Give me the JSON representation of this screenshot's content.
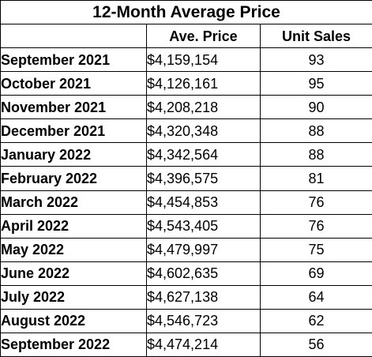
{
  "table": {
    "title": "12-Month Average Price",
    "headers": {
      "month": "",
      "price": "Ave. Price",
      "units": "Unit Sales"
    },
    "rows": [
      {
        "month": "September 2021",
        "price": "$4,159,154",
        "units": "93"
      },
      {
        "month": "October 2021",
        "price": "$4,126,161",
        "units": "95"
      },
      {
        "month": "November 2021",
        "price": "$4,208,218",
        "units": "90"
      },
      {
        "month": "December 2021",
        "price": "$4,320,348",
        "units": "88"
      },
      {
        "month": "January 2022",
        "price": "$4,342,564",
        "units": "88"
      },
      {
        "month": "February 2022",
        "price": "$4,396,575",
        "units": "81"
      },
      {
        "month": "March 2022",
        "price": "$4,454,853",
        "units": "76"
      },
      {
        "month": "April 2022",
        "price": "$4,543,405",
        "units": "76"
      },
      {
        "month": "May 2022",
        "price": "$4,479,997",
        "units": "75"
      },
      {
        "month": "June 2022",
        "price": "$4,602,635",
        "units": "69"
      },
      {
        "month": "July 2022",
        "price": "$4,627,138",
        "units": "64"
      },
      {
        "month": "August 2022",
        "price": "$4,546,723",
        "units": "62"
      },
      {
        "month": "September 2022",
        "price": "$4,474,214",
        "units": "56"
      }
    ]
  }
}
